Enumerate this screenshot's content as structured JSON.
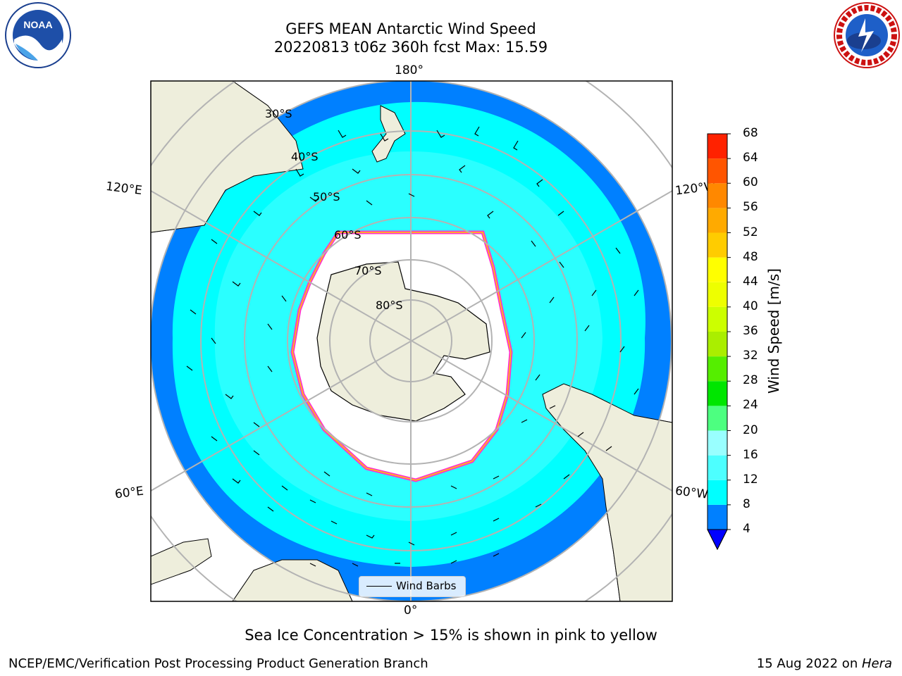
{
  "title": {
    "line1": "GEFS MEAN Antarctic Wind Speed",
    "line2": "20220813 t06z 360h fcst   Max: 15.59"
  },
  "map": {
    "projection": "south-polar-stereographic",
    "lon_labels": [
      "180°",
      "120°E",
      "120°W",
      "60°E",
      "60°W",
      "0°"
    ],
    "lat_labels": [
      "30°S",
      "40°S",
      "50°S",
      "60°S",
      "70°S",
      "80°S"
    ],
    "colors": {
      "ocean_4_8": "#0080ff",
      "ocean_8_12": "#00ffff",
      "ocean_12_16": "#4dffff",
      "land": "#eeeedc",
      "sea_ice_edge": "#ff33cc",
      "sea_ice_inner": "#ffcc00",
      "grid": "#b3b3b3"
    }
  },
  "legend": {
    "label": "Wind Barbs"
  },
  "colorbar": {
    "label": "Wind Speed [m/s]",
    "ticks": [
      "4",
      "8",
      "12",
      "16",
      "20",
      "24",
      "28",
      "32",
      "36",
      "40",
      "44",
      "48",
      "52",
      "56",
      "60",
      "64",
      "68"
    ],
    "colors": [
      "#0080ff",
      "#00ffff",
      "#4dffff",
      "#99ffff",
      "#4dff80",
      "#00e600",
      "#55ee00",
      "#aaee00",
      "#ccff00",
      "#eeff00",
      "#ffff00",
      "#ffcc00",
      "#ffaa00",
      "#ff8800",
      "#ff5500",
      "#ff2200"
    ],
    "extend_color": "#0000ff"
  },
  "note": "Sea Ice Concentration > 15% is shown in pink to yellow",
  "footer": {
    "left": "NCEP/EMC/Verification Post Processing Product Generation Branch",
    "date": "15 Aug 2022 on ",
    "host": "Hera"
  },
  "logos": {
    "left_text": "NOAA",
    "right_text": "NATIONAL WEATHER SERVICE"
  }
}
